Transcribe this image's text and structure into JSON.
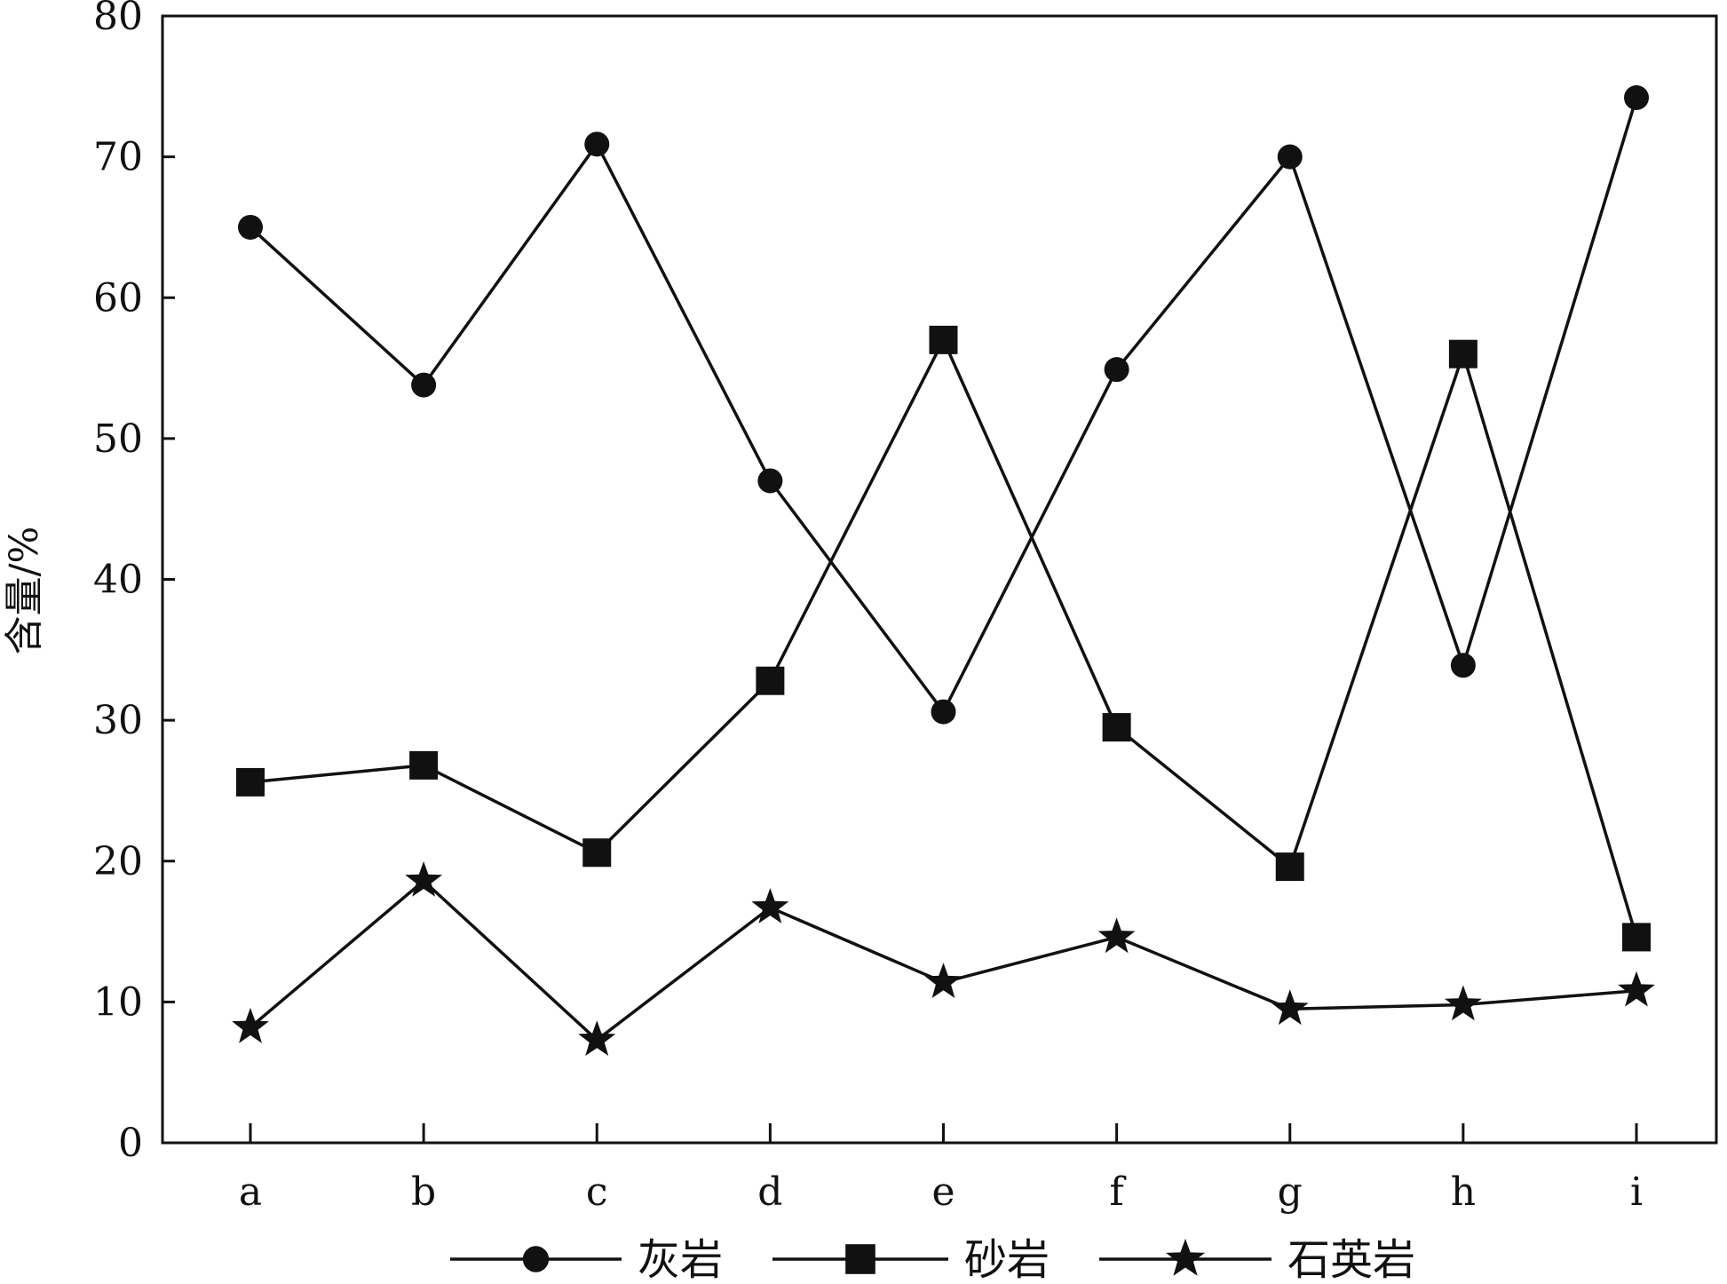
{
  "chart_data": {
    "type": "line",
    "categories": [
      "a",
      "b",
      "c",
      "d",
      "e",
      "f",
      "g",
      "h",
      "i"
    ],
    "series": [
      {
        "name": "灰岩",
        "marker": "circle",
        "values": [
          65,
          53.8,
          70.9,
          47,
          30.6,
          54.9,
          70,
          33.9,
          74.2
        ]
      },
      {
        "name": "砂岩",
        "marker": "square",
        "values": [
          25.6,
          26.8,
          20.6,
          32.8,
          57,
          29.5,
          19.6,
          56,
          14.6
        ]
      },
      {
        "name": "石英岩",
        "marker": "star",
        "values": [
          8.2,
          18.6,
          7.3,
          16.7,
          11.4,
          14.6,
          9.5,
          9.8,
          10.8
        ]
      }
    ],
    "ylabel": "含量/%",
    "xlabel": "",
    "ylim": [
      0,
      80
    ],
    "yticks": [
      0,
      10,
      20,
      30,
      40,
      50,
      60,
      70,
      80
    ],
    "grid": false,
    "legend_position": "bottom",
    "color": "#111111"
  }
}
